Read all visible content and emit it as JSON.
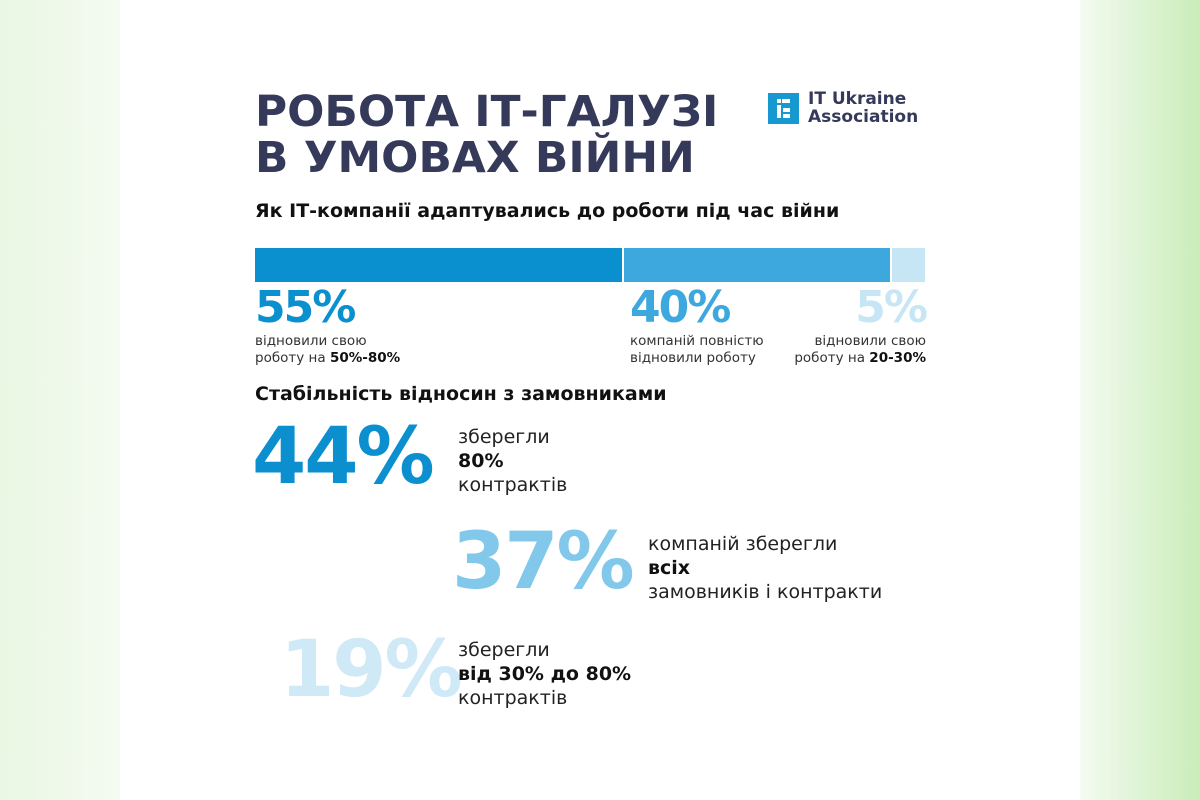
{
  "title": {
    "line1": "РОБОТА ІТ-ГАЛУЗІ",
    "line2": "В УМОВАХ ВІЙНИ"
  },
  "logo": {
    "line1": "IT Ukraine",
    "line2": "Association"
  },
  "section1": {
    "heading": "Як ІТ-компанії адаптувались до роботи під час війни",
    "items": [
      {
        "value": "55%",
        "percent": 55,
        "color": "#0a8fcf",
        "text1": "відновили свою",
        "text2_pre": "роботу на ",
        "text2_bold": "50%-80%"
      },
      {
        "value": "40%",
        "percent": 40,
        "color": "#3ca8dd",
        "text1": "компаній повністю",
        "text2_pre": "відновили роботу",
        "text2_bold": ""
      },
      {
        "value": "5%",
        "percent": 5,
        "color": "#c6e6f6",
        "text1": "відновили свою",
        "text2_pre": "роботу на ",
        "text2_bold": "20-30%"
      }
    ]
  },
  "section2": {
    "heading": "Стабільність відносин з замовниками",
    "items": [
      {
        "value": "44%",
        "color": "#0b8fcf",
        "line1": "зберегли",
        "line2": "80%",
        "line3": "контрактів"
      },
      {
        "value": "37%",
        "color": "#82c8eb",
        "line1": "компаній зберегли",
        "line2": "всіх",
        "line3": "замовників і контракти"
      },
      {
        "value": "19%",
        "color": "#cfe9f6",
        "line1": "зберегли",
        "line2": "від 30% до 80%",
        "line3": "контрактів"
      }
    ]
  }
}
